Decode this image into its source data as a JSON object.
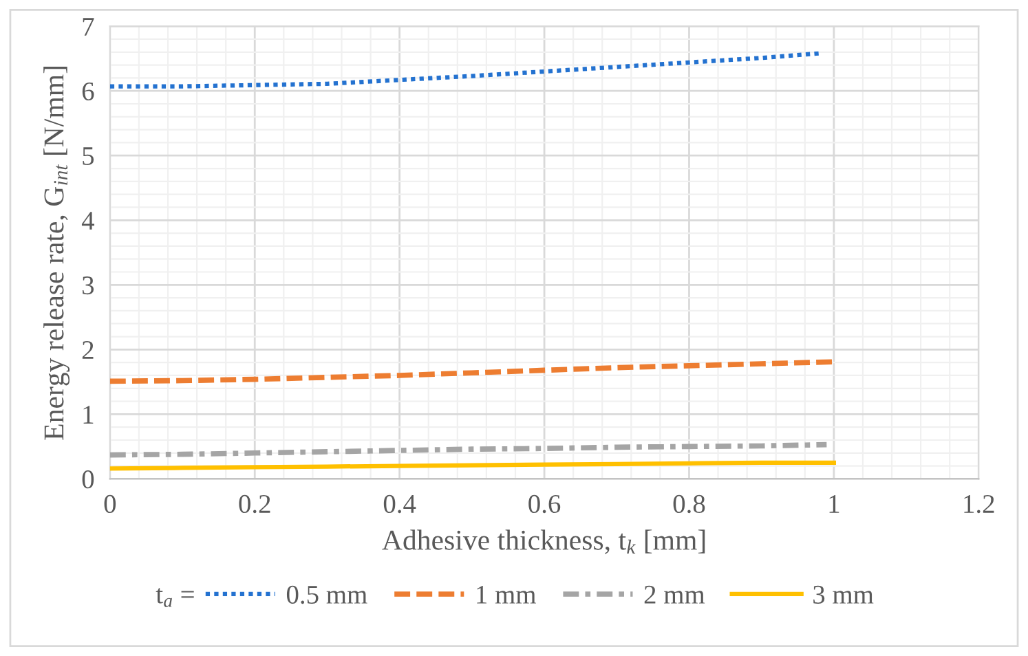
{
  "chart_data": {
    "type": "line",
    "xlabel": "Adhesive thickness, t$_{k}$ [mm]",
    "ylabel": "Energy release rate, G$_{int}$ [N/mm]",
    "legend_title": "t$_{a}$ =",
    "xlim": [
      0,
      1.2
    ],
    "xticks": [
      0,
      0.2,
      0.4,
      0.6,
      0.8,
      1,
      1.2
    ],
    "ylim": [
      0,
      7
    ],
    "yticks": [
      0,
      1,
      2,
      3,
      4,
      5,
      6,
      7
    ],
    "grid": true,
    "legend": "bottom",
    "marker": "none",
    "series": [
      {
        "name": "0.5 mm",
        "color": "#2472d0",
        "line_style": "dotted",
        "x": [
          0,
          0.1,
          0.2,
          0.3,
          0.4,
          0.5,
          0.6,
          0.7,
          0.8,
          0.9,
          0.98
        ],
        "values": [
          6.07,
          6.07,
          6.09,
          6.11,
          6.17,
          6.23,
          6.3,
          6.37,
          6.44,
          6.51,
          6.58
        ]
      },
      {
        "name": "1 mm",
        "color": "#ed7d31",
        "line_style": "dashed",
        "x": [
          0,
          0.1,
          0.2,
          0.3,
          0.4,
          0.5,
          0.6,
          0.7,
          0.8,
          0.9,
          1
        ],
        "values": [
          1.51,
          1.52,
          1.54,
          1.57,
          1.6,
          1.64,
          1.68,
          1.72,
          1.75,
          1.78,
          1.81
        ]
      },
      {
        "name": "2 mm",
        "color": "#a5a5a5",
        "line_style": "dashdot",
        "x": [
          0,
          0.1,
          0.2,
          0.3,
          0.4,
          0.5,
          0.6,
          0.7,
          0.8,
          0.9,
          0.99
        ],
        "values": [
          0.37,
          0.38,
          0.4,
          0.42,
          0.44,
          0.46,
          0.47,
          0.49,
          0.5,
          0.51,
          0.53
        ]
      },
      {
        "name": "3 mm",
        "color": "#ffc000",
        "line_style": "solid",
        "x": [
          0,
          0.1,
          0.2,
          0.3,
          0.4,
          0.5,
          0.6,
          0.7,
          0.8,
          0.9,
          1
        ],
        "values": [
          0.16,
          0.17,
          0.18,
          0.19,
          0.2,
          0.21,
          0.22,
          0.23,
          0.24,
          0.25,
          0.25
        ]
      }
    ]
  }
}
